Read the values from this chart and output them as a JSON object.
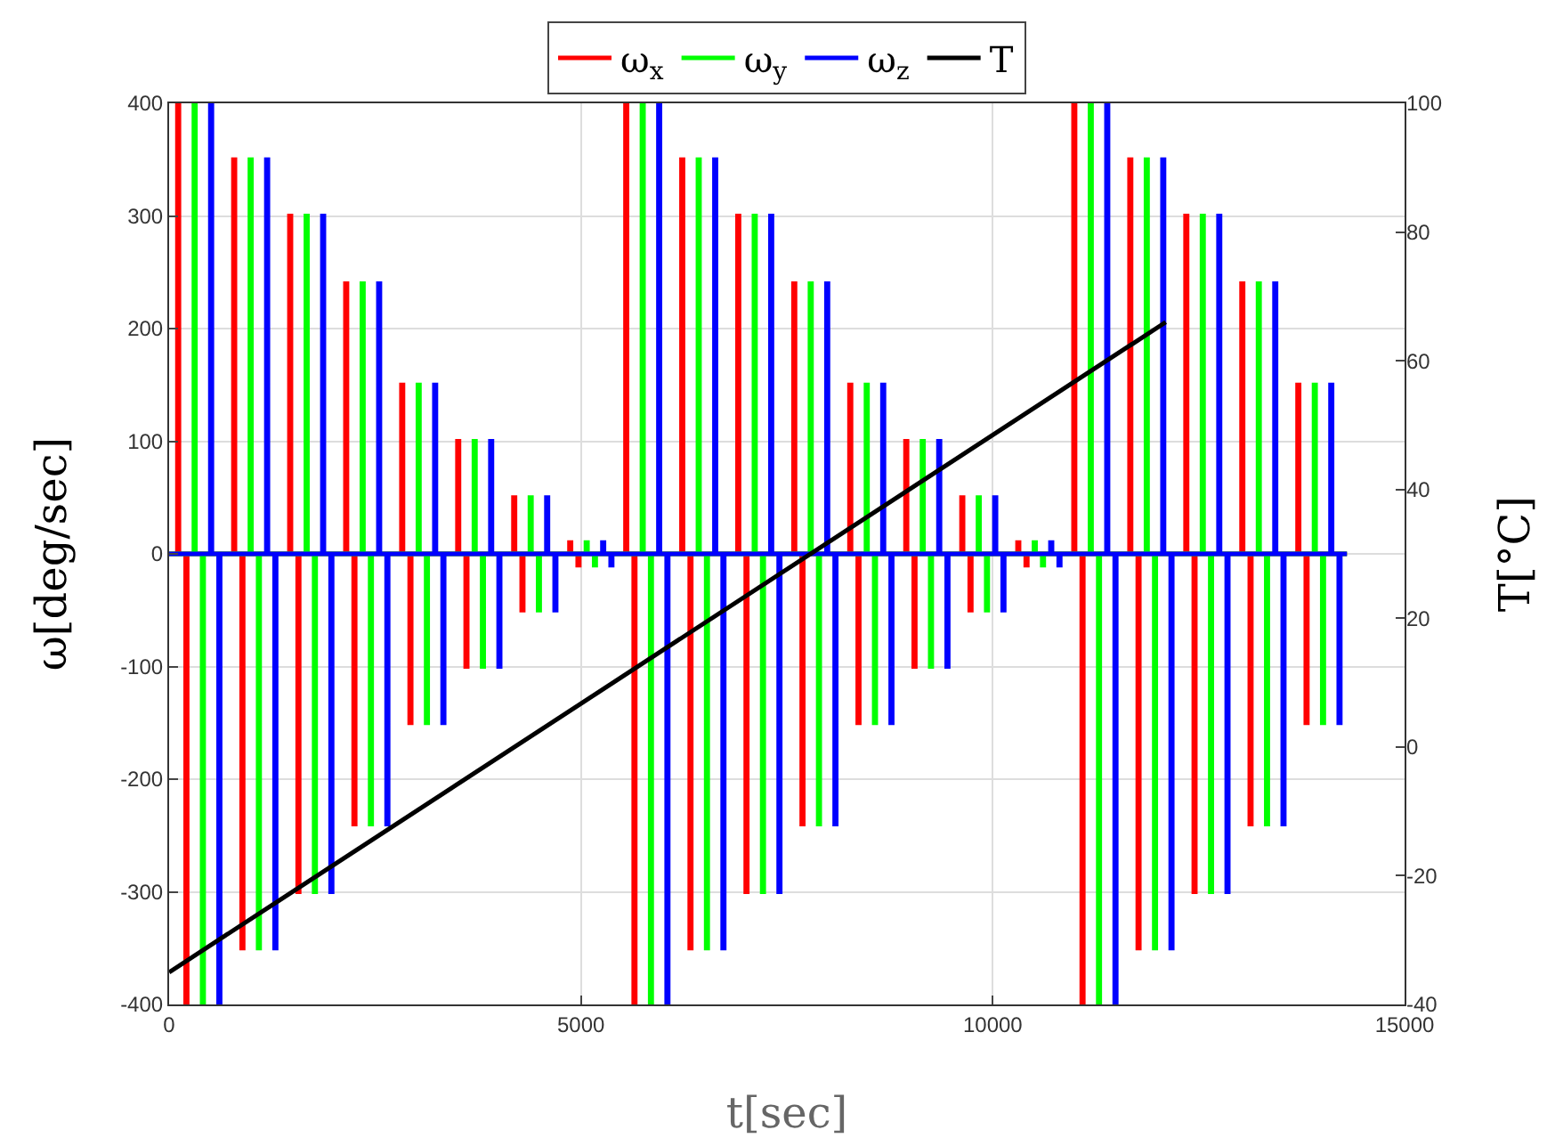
{
  "chart_data": {
    "type": "step",
    "xlabel": "t[sec]",
    "ylabel": "ω[deg/sec]",
    "y2label": "T[°C]",
    "xlim": [
      0,
      15000
    ],
    "xticks": [
      0,
      5000,
      10000,
      15000
    ],
    "ylim": [
      -400,
      400
    ],
    "yticks": [
      -400,
      -300,
      -200,
      -100,
      0,
      100,
      200,
      300,
      400
    ],
    "y2lim": [
      -40,
      100
    ],
    "y2ticks": [
      -40,
      -20,
      0,
      20,
      40,
      60,
      80,
      100
    ],
    "grid": true,
    "legend": "top",
    "line_style": "solid",
    "marker": "none",
    "series": [
      {
        "name": "ω$_{x}$",
        "color": "#ff0000",
        "x": [
          0,
          100,
          120,
          200,
          220,
          780,
          800,
          880,
          900,
          1460,
          1480,
          1560,
          1580,
          2140,
          2160,
          2240,
          2260,
          2820,
          2840,
          2920,
          2940,
          3500,
          3520,
          3600,
          3620,
          4180,
          4200,
          4280,
          4300,
          4860,
          4880,
          4960,
          4980,
          5540,
          5560,
          5640,
          5660,
          6220,
          6240,
          6320,
          6340,
          6900,
          6920,
          7000,
          7020,
          7580,
          7600,
          7680,
          7700,
          8260,
          8280,
          8360,
          8380,
          8940,
          8960,
          9040,
          9060,
          9620,
          9640,
          9720,
          9740,
          10300,
          10320,
          10400,
          10420,
          10980,
          11000,
          11080,
          11100,
          11660,
          11680,
          11760,
          11780,
          12340,
          12360,
          12440,
          12460,
          13020,
          13040,
          13120,
          13140,
          13700,
          13720,
          13800,
          13820,
          14300
        ],
        "values": [
          0,
          400,
          0,
          -400,
          0,
          350,
          0,
          -350,
          0,
          300,
          0,
          -300,
          0,
          240,
          0,
          -240,
          0,
          150,
          0,
          -150,
          0,
          100,
          0,
          -100,
          0,
          50,
          0,
          -50,
          0,
          10,
          0,
          -10,
          0,
          400,
          0,
          -400,
          0,
          350,
          0,
          -350,
          0,
          300,
          0,
          -300,
          0,
          240,
          0,
          -240,
          0,
          150,
          0,
          -150,
          0,
          100,
          0,
          -100,
          0,
          50,
          0,
          -50,
          0,
          10,
          0,
          -10,
          0,
          400,
          0,
          -400,
          0,
          350,
          0,
          -350,
          0,
          300,
          0,
          -300,
          0,
          240,
          0,
          -240,
          0,
          150,
          0,
          -150,
          0,
          0
        ]
      },
      {
        "name": "ω$_{y}$",
        "color": "#00ff00",
        "x": [
          0,
          300,
          320,
          400,
          420,
          980,
          1000,
          1080,
          1100,
          1660,
          1680,
          1760,
          1780,
          2340,
          2360,
          2440,
          2460,
          3020,
          3040,
          3120,
          3140,
          3700,
          3720,
          3800,
          3820,
          4380,
          4400,
          4480,
          4500,
          5060,
          5080,
          5160,
          5180,
          5740,
          5760,
          5840,
          5860,
          6420,
          6440,
          6520,
          6540,
          7100,
          7120,
          7200,
          7220,
          7780,
          7800,
          7880,
          7900,
          8460,
          8480,
          8560,
          8580,
          9140,
          9160,
          9240,
          9260,
          9820,
          9840,
          9920,
          9940,
          10500,
          10520,
          10600,
          10620,
          11180,
          11200,
          11280,
          11300,
          11860,
          11880,
          11960,
          11980,
          12540,
          12560,
          12640,
          12660,
          13220,
          13240,
          13320,
          13340,
          13900,
          13920,
          14000,
          14020,
          14300
        ],
        "values": [
          0,
          400,
          0,
          -400,
          0,
          350,
          0,
          -350,
          0,
          300,
          0,
          -300,
          0,
          240,
          0,
          -240,
          0,
          150,
          0,
          -150,
          0,
          100,
          0,
          -100,
          0,
          50,
          0,
          -50,
          0,
          10,
          0,
          -10,
          0,
          400,
          0,
          -400,
          0,
          350,
          0,
          -350,
          0,
          300,
          0,
          -300,
          0,
          240,
          0,
          -240,
          0,
          150,
          0,
          -150,
          0,
          100,
          0,
          -100,
          0,
          50,
          0,
          -50,
          0,
          10,
          0,
          -10,
          0,
          400,
          0,
          -400,
          0,
          350,
          0,
          -350,
          0,
          300,
          0,
          -300,
          0,
          240,
          0,
          -240,
          0,
          150,
          0,
          -150,
          0,
          0
        ]
      },
      {
        "name": "ω$_{z}$",
        "color": "#0000ff",
        "x": [
          0,
          500,
          520,
          600,
          620,
          1180,
          1200,
          1280,
          1300,
          1860,
          1880,
          1960,
          1980,
          2540,
          2560,
          2640,
          2660,
          3220,
          3240,
          3320,
          3340,
          3900,
          3920,
          4000,
          4020,
          4580,
          4600,
          4680,
          4700,
          5260,
          5280,
          5360,
          5380,
          5940,
          5960,
          6040,
          6060,
          6620,
          6640,
          6720,
          6740,
          7300,
          7320,
          7400,
          7420,
          7980,
          8000,
          8080,
          8100,
          8660,
          8680,
          8760,
          8780,
          9340,
          9360,
          9440,
          9460,
          10020,
          10040,
          10120,
          10140,
          10700,
          10720,
          10800,
          10820,
          11380,
          11400,
          11480,
          11500,
          12060,
          12080,
          12160,
          12180,
          12740,
          12760,
          12840,
          12860,
          13420,
          13440,
          13520,
          13540,
          14100,
          14120,
          14200,
          14220,
          14300
        ],
        "values": [
          0,
          400,
          0,
          -400,
          0,
          350,
          0,
          -350,
          0,
          300,
          0,
          -300,
          0,
          240,
          0,
          -240,
          0,
          150,
          0,
          -150,
          0,
          100,
          0,
          -100,
          0,
          50,
          0,
          -50,
          0,
          10,
          0,
          -10,
          0,
          400,
          0,
          -400,
          0,
          350,
          0,
          -350,
          0,
          300,
          0,
          -300,
          0,
          240,
          0,
          -240,
          0,
          150,
          0,
          -150,
          0,
          100,
          0,
          -100,
          0,
          50,
          0,
          -50,
          0,
          10,
          0,
          -10,
          0,
          400,
          0,
          -400,
          0,
          350,
          0,
          -350,
          0,
          300,
          0,
          -300,
          0,
          240,
          0,
          -240,
          0,
          150,
          0,
          -150,
          0,
          0
        ]
      },
      {
        "name": "T",
        "color": "#000000",
        "type": "line",
        "axis": "y2",
        "x": [
          0,
          12100
        ],
        "values": [
          -35,
          66
        ]
      }
    ]
  }
}
